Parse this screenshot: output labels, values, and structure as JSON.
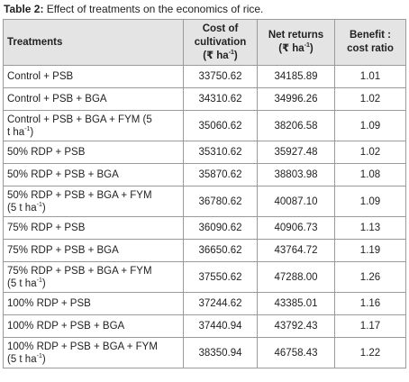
{
  "caption": {
    "label": "Table 2:",
    "text": " Effect of treatments on the economics of rice."
  },
  "headers": {
    "treatments": "Treatments",
    "cost_line1": "Cost of",
    "cost_line2": "cultivation",
    "cost_unit_pre": "(₹ ha",
    "cost_unit_sup": "-1",
    "cost_unit_post": ")",
    "net_line1": "Net returns",
    "net_unit_pre": "(₹ ha",
    "net_unit_sup": "-1",
    "net_unit_post": ")",
    "bcr_line1": "Benefit :",
    "bcr_line2": "cost ratio"
  },
  "rows": [
    {
      "treatment": "Control + PSB",
      "cost": "33750.62",
      "net": "34185.89",
      "bcr": "1.01"
    },
    {
      "treatment": "Control + PSB + BGA",
      "cost": "34310.62",
      "net": "34996.26",
      "bcr": "1.02"
    },
    {
      "treatment_l1": "Control + PSB + BGA + FYM (5",
      "treatment_l2_pre": "t ha",
      "treatment_sup": "-1",
      "treatment_l2_post": ")",
      "cost": "35060.62",
      "net": "38206.58",
      "bcr": "1.09"
    },
    {
      "treatment": "50% RDP + PSB",
      "cost": "35310.62",
      "net": "35927.48",
      "bcr": "1.02"
    },
    {
      "treatment": "50% RDP + PSB + BGA",
      "cost": "35870.62",
      "net": "38803.98",
      "bcr": "1.08"
    },
    {
      "treatment_l1": "50% RDP + PSB + BGA + FYM",
      "treatment_l2_pre": "(5 t ha",
      "treatment_sup": "-1",
      "treatment_l2_post": ")",
      "cost": "36780.62",
      "net": "40087.10",
      "bcr": "1.09"
    },
    {
      "treatment": "75% RDP + PSB",
      "cost": "36090.62",
      "net": "40906.73",
      "bcr": "1.13"
    },
    {
      "treatment": "75% RDP + PSB + BGA",
      "cost": "36650.62",
      "net": "43764.72",
      "bcr": "1.19"
    },
    {
      "treatment_l1": "75% RDP + PSB + BGA + FYM",
      "treatment_l2_pre": "(5 t ha",
      "treatment_sup": "-1",
      "treatment_l2_post": ")",
      "cost": "37550.62",
      "net": "47288.00",
      "bcr": "1.26"
    },
    {
      "treatment": "100% RDP + PSB",
      "cost": "37244.62",
      "net": "43385.01",
      "bcr": "1.16"
    },
    {
      "treatment": "100% RDP + PSB + BGA",
      "cost": "37440.94",
      "net": "43792.43",
      "bcr": "1.17"
    },
    {
      "treatment_l1": "100% RDP + PSB + BGA  + FYM",
      "treatment_l2_pre": "(5 t ha",
      "treatment_sup": "-1",
      "treatment_l2_post": ")",
      "cost": "38350.94",
      "net": "46758.43",
      "bcr": "1.22"
    }
  ]
}
